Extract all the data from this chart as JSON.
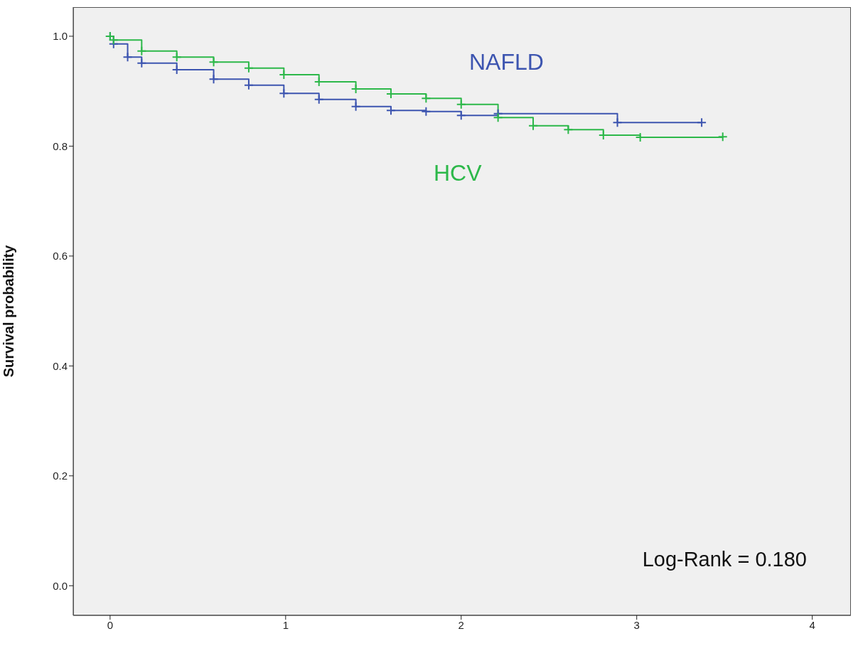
{
  "chart_data": {
    "type": "step",
    "ylabel": "Survival probability",
    "xlim": [
      -0.21,
      4.22
    ],
    "ylim": [
      -0.054,
      1.053
    ],
    "xticks": [
      0,
      1,
      2,
      3,
      4
    ],
    "yticks": [
      {
        "value": 0,
        "label": "0.0"
      },
      {
        "value": 0.2,
        "label": "0.2"
      },
      {
        "value": 0.4,
        "label": "0.4"
      },
      {
        "value": 0.6,
        "label": "0.6"
      },
      {
        "value": 0.8,
        "label": "0.8"
      },
      {
        "value": 1,
        "label": "1.0"
      }
    ],
    "grid": false,
    "legend": false,
    "marker": "cross",
    "line_style": "solid",
    "series": [
      {
        "name": "NAFLD",
        "color": "#3d55b0",
        "x": [
          0,
          0.02,
          0.1,
          0.18,
          0.38,
          0.59,
          0.79,
          0.99,
          1.19,
          1.4,
          1.6,
          1.8,
          2.0,
          2.21,
          2.89,
          3.37
        ],
        "values": [
          1.0,
          0.986,
          0.962,
          0.951,
          0.939,
          0.922,
          0.911,
          0.896,
          0.885,
          0.872,
          0.865,
          0.863,
          0.856,
          0.859,
          0.843,
          0.843
        ]
      },
      {
        "name": "HCV",
        "color": "#2db84a",
        "x": [
          0,
          0.02,
          0.18,
          0.38,
          0.59,
          0.79,
          0.99,
          1.19,
          1.4,
          1.6,
          1.8,
          2.0,
          2.21,
          2.41,
          2.61,
          2.81,
          3.02,
          3.49
        ],
        "values": [
          1.0,
          0.993,
          0.973,
          0.962,
          0.953,
          0.942,
          0.93,
          0.917,
          0.904,
          0.895,
          0.887,
          0.876,
          0.852,
          0.837,
          0.83,
          0.82,
          0.816,
          0.817
        ]
      }
    ],
    "annotations": [
      "Log-Rank = 0.180"
    ]
  }
}
